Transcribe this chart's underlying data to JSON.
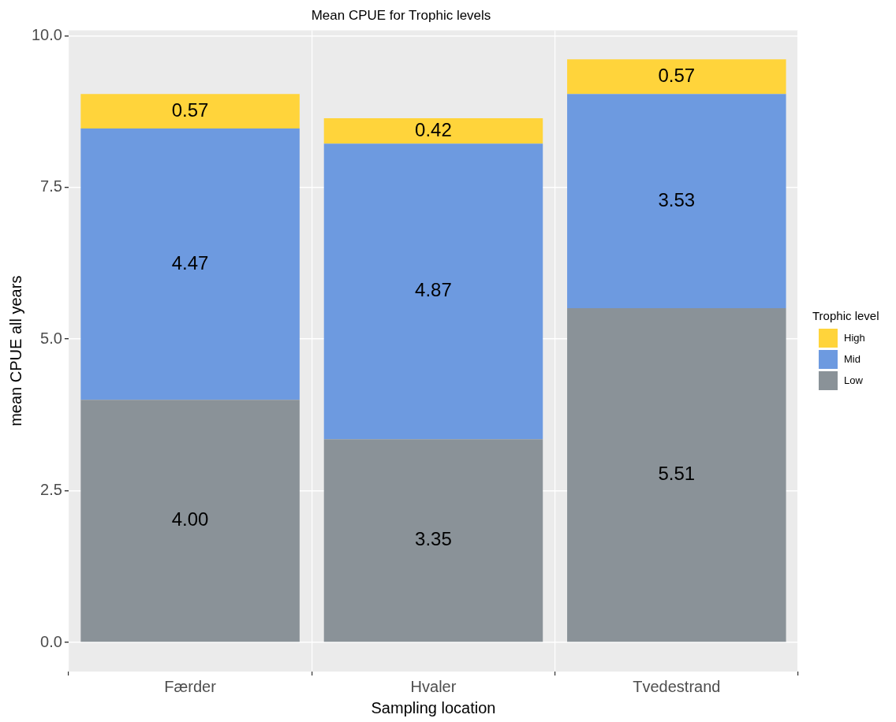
{
  "chart_data": {
    "type": "bar",
    "title": "Mean CPUE for Trophic levels",
    "xlabel": "Sampling location",
    "ylabel": "mean CPUE all years",
    "legend_title": "Trophic level",
    "categories": [
      "Færder",
      "Hvaler",
      "Tvedestrand"
    ],
    "stacked": true,
    "series": [
      {
        "name": "Low",
        "color": "#8a9298",
        "values": [
          4.0,
          3.35,
          5.51
        ],
        "value_labels": [
          "4.00",
          "3.35",
          "5.51"
        ]
      },
      {
        "name": "Mid",
        "color": "#6d9ae0",
        "values": [
          4.47,
          4.87,
          3.53
        ],
        "value_labels": [
          "4.47",
          "4.87",
          "3.53"
        ]
      },
      {
        "name": "High",
        "color": "#ffd43b",
        "values": [
          0.57,
          0.42,
          0.57
        ],
        "value_labels": [
          "0.57",
          "0.42",
          "0.57"
        ]
      }
    ],
    "ylim": [
      -0.48,
      10.09
    ],
    "yticks": [
      {
        "value": 0,
        "label": "0.0"
      },
      {
        "value": 2.5,
        "label": "2.5"
      },
      {
        "value": 5,
        "label": "5.0"
      },
      {
        "value": 7.5,
        "label": "7.5"
      },
      {
        "value": 10,
        "label": "10.0"
      }
    ],
    "grid": true,
    "legend": "right"
  }
}
